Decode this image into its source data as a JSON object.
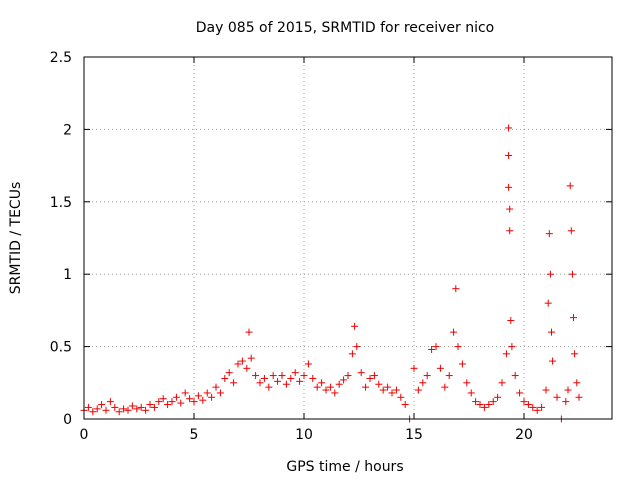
{
  "chart_data": {
    "type": "scatter",
    "title": "Day 085 of 2015, SRMTID for receiver nico",
    "xlabel": "GPS time / hours",
    "ylabel": "SRMTID / TECUs",
    "xlim": [
      0,
      24
    ],
    "ylim": [
      0,
      2.5
    ],
    "x_ticks": [
      0,
      5,
      10,
      15,
      20
    ],
    "x_tick_labels": [
      "0",
      "5",
      "10",
      "15",
      "20"
    ],
    "y_ticks": [
      0,
      0.5,
      1,
      1.5,
      2,
      2.5
    ],
    "y_tick_labels": [
      "0",
      "0.5",
      "1",
      "1.5",
      "2",
      "2.5"
    ],
    "grid": true,
    "marker": "plus",
    "color": "#ee0000",
    "series": [
      {
        "name": "SRMTID",
        "points": [
          [
            0.0,
            0.06
          ],
          [
            0.2,
            0.08
          ],
          [
            0.4,
            0.05
          ],
          [
            0.6,
            0.07
          ],
          [
            0.8,
            0.1
          ],
          [
            1.0,
            0.06
          ],
          [
            1.2,
            0.12
          ],
          [
            1.4,
            0.08
          ],
          [
            1.6,
            0.05
          ],
          [
            1.8,
            0.07
          ],
          [
            2.0,
            0.06
          ],
          [
            2.2,
            0.09
          ],
          [
            2.4,
            0.07
          ],
          [
            2.6,
            0.08
          ],
          [
            2.8,
            0.06
          ],
          [
            3.0,
            0.1
          ],
          [
            3.2,
            0.08
          ],
          [
            3.4,
            0.12
          ],
          [
            3.6,
            0.14
          ],
          [
            3.8,
            0.1
          ],
          [
            4.0,
            0.12
          ],
          [
            4.2,
            0.15
          ],
          [
            4.4,
            0.11
          ],
          [
            4.6,
            0.18
          ],
          [
            4.8,
            0.14
          ],
          [
            5.0,
            0.12
          ],
          [
            5.2,
            0.16
          ],
          [
            5.4,
            0.13
          ],
          [
            5.6,
            0.18
          ],
          [
            5.8,
            0.15
          ],
          [
            6.0,
            0.22
          ],
          [
            6.2,
            0.18
          ],
          [
            6.4,
            0.28
          ],
          [
            6.6,
            0.32
          ],
          [
            6.8,
            0.25
          ],
          [
            7.0,
            0.38
          ],
          [
            7.2,
            0.4
          ],
          [
            7.4,
            0.35
          ],
          [
            7.5,
            0.6
          ],
          [
            7.6,
            0.42
          ],
          [
            7.8,
            0.3
          ],
          [
            8.0,
            0.25
          ],
          [
            8.2,
            0.28
          ],
          [
            8.4,
            0.22
          ],
          [
            8.6,
            0.3
          ],
          [
            8.8,
            0.26
          ],
          [
            9.0,
            0.3
          ],
          [
            9.2,
            0.24
          ],
          [
            9.4,
            0.28
          ],
          [
            9.6,
            0.32
          ],
          [
            9.8,
            0.26
          ],
          [
            10.0,
            0.3
          ],
          [
            10.2,
            0.38
          ],
          [
            10.4,
            0.28
          ],
          [
            10.6,
            0.22
          ],
          [
            10.8,
            0.25
          ],
          [
            11.0,
            0.2
          ],
          [
            11.2,
            0.22
          ],
          [
            11.4,
            0.18
          ],
          [
            11.6,
            0.24
          ],
          [
            11.8,
            0.27
          ],
          [
            12.0,
            0.3
          ],
          [
            12.2,
            0.45
          ],
          [
            12.3,
            0.64
          ],
          [
            12.4,
            0.5
          ],
          [
            12.6,
            0.32
          ],
          [
            12.8,
            0.22
          ],
          [
            13.0,
            0.28
          ],
          [
            13.2,
            0.3
          ],
          [
            13.4,
            0.24
          ],
          [
            13.6,
            0.2
          ],
          [
            13.8,
            0.22
          ],
          [
            14.0,
            0.18
          ],
          [
            14.2,
            0.2
          ],
          [
            14.4,
            0.15
          ],
          [
            14.6,
            0.1
          ],
          [
            14.8,
            0.0
          ],
          [
            15.0,
            0.35
          ],
          [
            15.2,
            0.2
          ],
          [
            15.4,
            0.25
          ],
          [
            15.6,
            0.3
          ],
          [
            15.8,
            0.48
          ],
          [
            16.0,
            0.5
          ],
          [
            16.2,
            0.35
          ],
          [
            16.4,
            0.22
          ],
          [
            16.6,
            0.3
          ],
          [
            16.8,
            0.6
          ],
          [
            16.9,
            0.9
          ],
          [
            17.0,
            0.5
          ],
          [
            17.2,
            0.38
          ],
          [
            17.4,
            0.25
          ],
          [
            17.6,
            0.18
          ],
          [
            17.8,
            0.12
          ],
          [
            18.0,
            0.1
          ],
          [
            18.2,
            0.08
          ],
          [
            18.4,
            0.1
          ],
          [
            18.6,
            0.12
          ],
          [
            18.8,
            0.15
          ],
          [
            19.0,
            0.25
          ],
          [
            19.2,
            0.45
          ],
          [
            19.3,
            2.01
          ],
          [
            19.3,
            1.82
          ],
          [
            19.3,
            1.6
          ],
          [
            19.35,
            1.45
          ],
          [
            19.35,
            1.3
          ],
          [
            19.4,
            0.68
          ],
          [
            19.45,
            0.5
          ],
          [
            19.6,
            0.3
          ],
          [
            19.8,
            0.18
          ],
          [
            20.0,
            0.12
          ],
          [
            20.2,
            0.1
          ],
          [
            20.4,
            0.08
          ],
          [
            20.6,
            0.06
          ],
          [
            20.8,
            0.08
          ],
          [
            21.0,
            0.2
          ],
          [
            21.1,
            0.8
          ],
          [
            21.15,
            1.28
          ],
          [
            21.2,
            1.0
          ],
          [
            21.25,
            0.6
          ],
          [
            21.3,
            0.4
          ],
          [
            21.5,
            0.15
          ],
          [
            21.7,
            0.0
          ],
          [
            21.9,
            0.12
          ],
          [
            22.0,
            0.2
          ],
          [
            22.1,
            1.61
          ],
          [
            22.15,
            1.3
          ],
          [
            22.2,
            1.0
          ],
          [
            22.25,
            0.7
          ],
          [
            22.3,
            0.45
          ],
          [
            22.4,
            0.25
          ],
          [
            22.5,
            0.15
          ]
        ]
      }
    ]
  }
}
